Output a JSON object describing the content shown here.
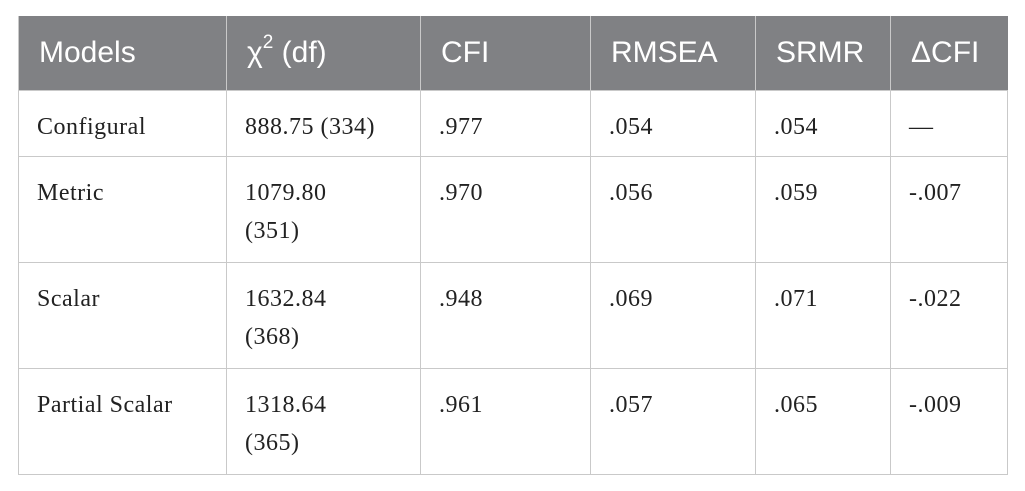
{
  "table": {
    "header": [
      "Models",
      {
        "symbol": "χ",
        "superscript": "2",
        "rest": " (df)"
      },
      "CFI",
      "RMSEA",
      "SRMR",
      "ΔCFI"
    ],
    "rows": [
      [
        "Configural",
        "888.75 (334)",
        ".977",
        ".054",
        ".054",
        "—"
      ],
      [
        "Metric",
        "1079.80 (351)",
        ".970",
        ".056",
        ".059",
        "-.007"
      ],
      [
        "Scalar",
        "1632.84 (368)",
        ".948",
        ".069",
        ".071",
        "-.022"
      ],
      [
        "Partial Scalar",
        "1318.64 (365)",
        ".961",
        ".057",
        ".065",
        "-.009"
      ]
    ]
  }
}
